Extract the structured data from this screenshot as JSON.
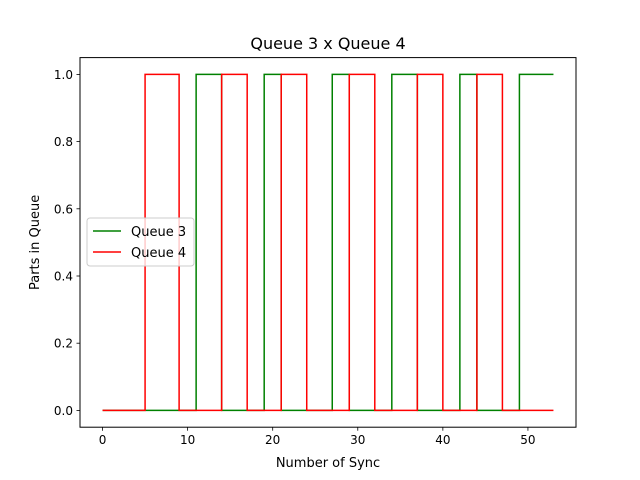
{
  "chart_data": {
    "type": "line",
    "title": "Queue 3 x Queue 4",
    "xlabel": "Number of Sync",
    "ylabel": "Parts in Queue",
    "xlim": [
      -2.65,
      55.65
    ],
    "ylim": [
      -0.05,
      1.05
    ],
    "xticks": [
      0,
      10,
      20,
      30,
      40,
      50
    ],
    "xtick_labels": [
      "0",
      "10",
      "20",
      "30",
      "40",
      "50"
    ],
    "yticks": [
      0.0,
      0.2,
      0.4,
      0.6,
      0.8,
      1.0
    ],
    "ytick_labels": [
      "0.0",
      "0.2",
      "0.4",
      "0.6",
      "0.8",
      "1.0"
    ],
    "grid": false,
    "legend_position": "center-left",
    "series": [
      {
        "name": "Queue 3",
        "color": "#008000",
        "x": [
          0,
          11,
          11,
          14,
          14,
          19,
          19,
          21,
          21,
          27,
          27,
          29,
          29,
          34,
          34,
          37,
          37,
          42,
          42,
          44,
          44,
          49,
          49,
          53
        ],
        "y": [
          0,
          0,
          1,
          1,
          0,
          0,
          1,
          1,
          0,
          0,
          1,
          1,
          0,
          0,
          1,
          1,
          0,
          0,
          1,
          1,
          0,
          0,
          1,
          1
        ]
      },
      {
        "name": "Queue 4",
        "color": "#ff0000",
        "x": [
          0,
          5,
          5,
          9,
          9,
          14,
          14,
          17,
          17,
          21,
          21,
          24,
          24,
          29,
          29,
          32,
          32,
          37,
          37,
          40,
          40,
          44,
          44,
          47,
          47,
          53
        ],
        "y": [
          0,
          0,
          1,
          1,
          0,
          0,
          1,
          1,
          0,
          0,
          1,
          1,
          0,
          0,
          1,
          1,
          0,
          0,
          1,
          1,
          0,
          0,
          1,
          1,
          0,
          0
        ]
      }
    ]
  }
}
